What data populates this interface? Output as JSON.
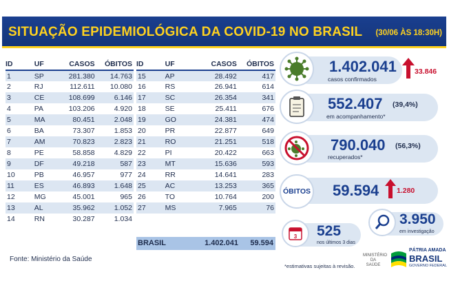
{
  "header": {
    "title": "SITUAÇÃO EPIDEMIOLÓGICA DA COVID-19 NO BRASIL",
    "datetime": "(30/06 ÀS 18:30H)"
  },
  "table_left": {
    "columns": [
      "ID",
      "UF",
      "CASOS",
      "ÓBITOS"
    ],
    "rows": [
      [
        "1",
        "SP",
        "281.380",
        "14.763"
      ],
      [
        "2",
        "RJ",
        "112.611",
        "10.080"
      ],
      [
        "3",
        "CE",
        "108.699",
        "6.146"
      ],
      [
        "4",
        "PA",
        "103.206",
        "4.920"
      ],
      [
        "5",
        "MA",
        "80.451",
        "2.048"
      ],
      [
        "6",
        "BA",
        "73.307",
        "1.853"
      ],
      [
        "7",
        "AM",
        "70.823",
        "2.823"
      ],
      [
        "8",
        "PE",
        "58.858",
        "4.829"
      ],
      [
        "9",
        "DF",
        "49.218",
        "587"
      ],
      [
        "10",
        "PB",
        "46.957",
        "977"
      ],
      [
        "11",
        "ES",
        "46.893",
        "1.648"
      ],
      [
        "12",
        "MG",
        "45.001",
        "965"
      ],
      [
        "13",
        "AL",
        "35.962",
        "1.052"
      ],
      [
        "14",
        "RN",
        "30.287",
        "1.034"
      ]
    ]
  },
  "table_right": {
    "columns": [
      "ID",
      "UF",
      "CASOS",
      "ÓBITOS"
    ],
    "rows": [
      [
        "15",
        "AP",
        "28.492",
        "417"
      ],
      [
        "16",
        "RS",
        "26.941",
        "614"
      ],
      [
        "17",
        "SC",
        "26.354",
        "341"
      ],
      [
        "18",
        "SE",
        "25.411",
        "676"
      ],
      [
        "19",
        "GO",
        "24.381",
        "474"
      ],
      [
        "20",
        "PR",
        "22.877",
        "649"
      ],
      [
        "21",
        "RO",
        "21.251",
        "518"
      ],
      [
        "22",
        "PI",
        "20.422",
        "663"
      ],
      [
        "23",
        "MT",
        "15.636",
        "593"
      ],
      [
        "24",
        "RR",
        "14.641",
        "283"
      ],
      [
        "25",
        "AC",
        "13.253",
        "365"
      ],
      [
        "26",
        "TO",
        "10.764",
        "200"
      ],
      [
        "27",
        "MS",
        "7.965",
        "76"
      ]
    ]
  },
  "brasil": {
    "label": "BRASIL",
    "casos": "1.402.041",
    "obitos": "59.594"
  },
  "fonte": "Fonte: Ministério da Saúde",
  "stats": {
    "confirmados": {
      "value": "1.402.041",
      "label": "casos confirmados",
      "increase": "33.846"
    },
    "acompanhamento": {
      "value": "552.407",
      "percent": "(39,4%)",
      "label": "em acompanhamento*"
    },
    "recuperados": {
      "value": "790.040",
      "percent": "(56,3%)",
      "label": "recuperados*"
    },
    "obitos": {
      "badge": "ÓBITOS",
      "value": "59.594",
      "increase": "1.280"
    },
    "ultimos_dias": {
      "value": "525",
      "label": "nos últimos 3 dias"
    },
    "investigacao": {
      "value": "3.950",
      "label": "em investigação"
    }
  },
  "nota": "*estimativas sujeitas à revisão.",
  "footer_logo": {
    "ministerio": "MINISTÉRIO DA SAÚDE",
    "line1": "PÁTRIA AMADA",
    "line2": "BRASIL",
    "line3": "GOVERNO FEDERAL"
  },
  "colors": {
    "navy": "#1a3f8f",
    "yellow": "#ffd21f",
    "red": "#c8102e",
    "light_blue": "#dce6f2",
    "covid_green": "#4a7c2a"
  }
}
